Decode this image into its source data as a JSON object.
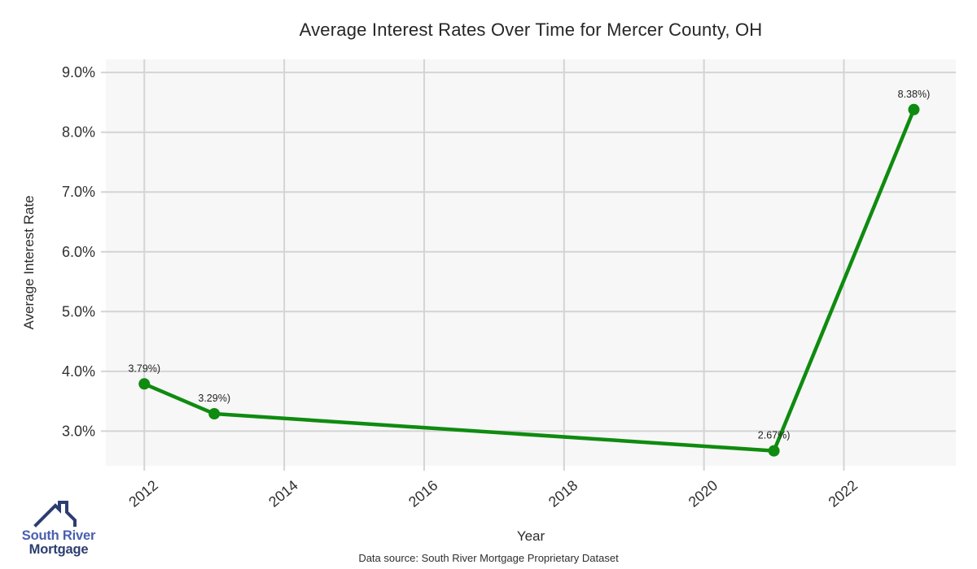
{
  "chart_data": {
    "type": "line",
    "title": "Average Interest Rates Over Time for Mercer County, OH",
    "xlabel": "Year",
    "ylabel": "Average Interest Rate",
    "series": [
      {
        "name": "Average Interest Rate",
        "x": [
          2012,
          2013,
          2021,
          2023
        ],
        "y": [
          3.79,
          3.29,
          2.67,
          8.38
        ],
        "point_labels": [
          "3.79%)",
          "3.29%)",
          "2.67%)",
          "8.38%)"
        ],
        "color": "#0f8b0f"
      }
    ],
    "xticks": [
      2012,
      2014,
      2016,
      2018,
      2020,
      2022
    ],
    "yticks": [
      3,
      4,
      5,
      6,
      7,
      8,
      9
    ],
    "ytick_labels": [
      "3.0%",
      "4.0%",
      "5.0%",
      "6.0%",
      "7.0%",
      "8.0%",
      "9.0%"
    ],
    "xlim": [
      2011.45,
      2023.6
    ],
    "ylim": [
      2.42,
      9.22
    ],
    "grid": true,
    "legend": "none",
    "plot_bg_color": "#f7f7f7",
    "grid_color": "#d4d4d4"
  },
  "logo": {
    "line1": "South River",
    "line2": "Mortgage",
    "color_line1": "#4a5fae",
    "color_line2": "#2c3e70"
  },
  "footer": {
    "data_source": "Data source: South River Mortgage Proprietary Dataset"
  }
}
